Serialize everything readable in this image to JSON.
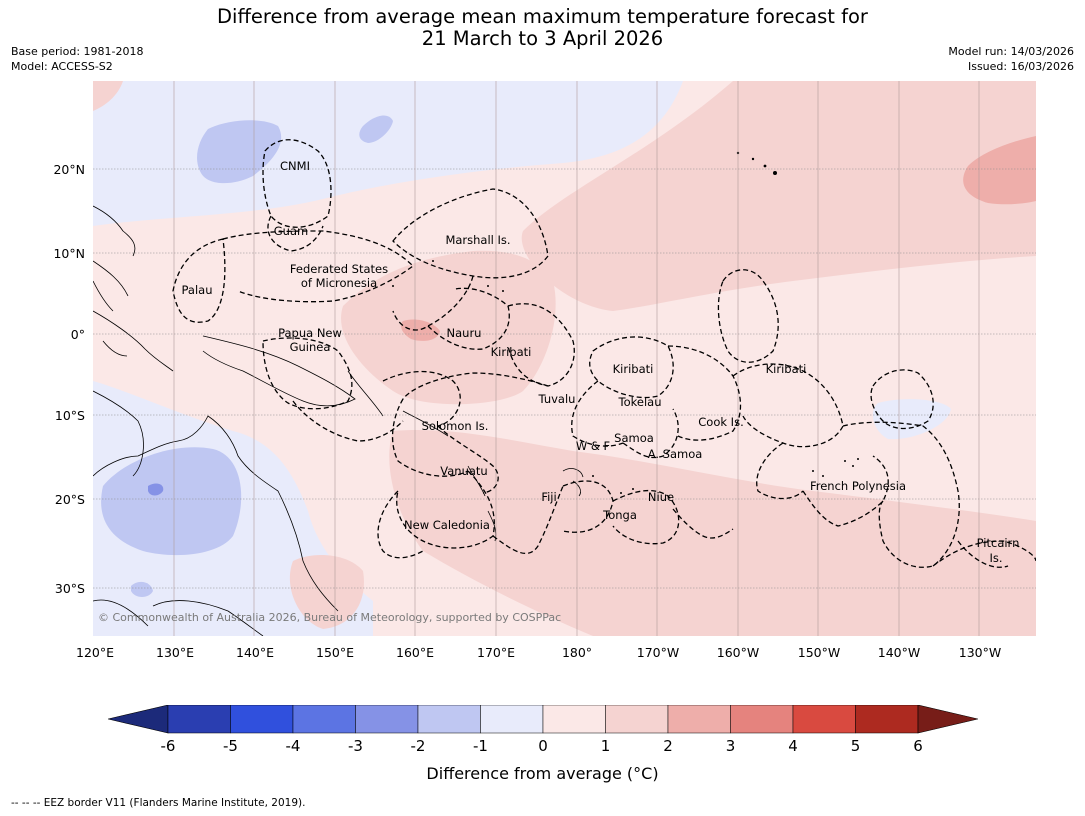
{
  "header": {
    "title_line1": "Difference from average mean maximum temperature forecast for",
    "title_line2": "21 March to 3 April 2026",
    "base_period": "Base period: 1981-2018",
    "model": "Model: ACCESS-S2",
    "model_run": "Model run: 14/03/2026",
    "issued": "Issued: 16/03/2026"
  },
  "axes": {
    "lat_ticks": [
      "20°N",
      "10°N",
      "0°",
      "10°S",
      "20°S",
      "30°S"
    ],
    "lon_ticks": [
      "120°E",
      "130°E",
      "140°E",
      "150°E",
      "160°E",
      "170°E",
      "180°",
      "170°W",
      "160°W",
      "150°W",
      "140°W",
      "130°W"
    ],
    "lat_range": [
      -36,
      31
    ],
    "lon_range": [
      120,
      236
    ]
  },
  "regions": [
    {
      "label": "CNMI"
    },
    {
      "label": "Guam"
    },
    {
      "label": "Marshall Is."
    },
    {
      "label": "Federated States"
    },
    {
      "label": "of Micronesia"
    },
    {
      "label": "Palau"
    },
    {
      "label": "Papua New"
    },
    {
      "label": "Guinea"
    },
    {
      "label": "Nauru"
    },
    {
      "label": "Kiribati"
    },
    {
      "label": "Kiribati"
    },
    {
      "label": "Kiribati"
    },
    {
      "label": "Tuvalu"
    },
    {
      "label": "Tokelau"
    },
    {
      "label": "Solomon Is."
    },
    {
      "label": "Samoa"
    },
    {
      "label": "W & F"
    },
    {
      "label": "A. Samoa"
    },
    {
      "label": "Cook Is."
    },
    {
      "label": "Vanuatu"
    },
    {
      "label": "Fiji"
    },
    {
      "label": "Niue"
    },
    {
      "label": "Tonga"
    },
    {
      "label": "French Polynesia"
    },
    {
      "label": "New Caledonia"
    },
    {
      "label": "Pitcairn"
    },
    {
      "label": "Is."
    }
  ],
  "copyright": "© Commonwealth of Australia 2026, Bureau of Meteorology, supported by COSPPac",
  "colorbar": {
    "ticks": [
      "-6",
      "-5",
      "-4",
      "-3",
      "-2",
      "-1",
      "0",
      "1",
      "2",
      "3",
      "4",
      "5",
      "6"
    ],
    "colors": [
      "#2a3eb1",
      "#3050dd",
      "#5c74e3",
      "#8592e6",
      "#bfc7f2",
      "#e8ebfb",
      "#fbe8e7",
      "#f5d3d1",
      "#eeaeaa",
      "#e5837e",
      "#d94a40",
      "#ad2a20"
    ],
    "under_color": "#1c2a7a",
    "over_color": "#771d18",
    "label": "Difference from average (°C)"
  },
  "footnote": "--  --  -- EEZ border V11 (Flanders Marine Institute, 2019)."
}
